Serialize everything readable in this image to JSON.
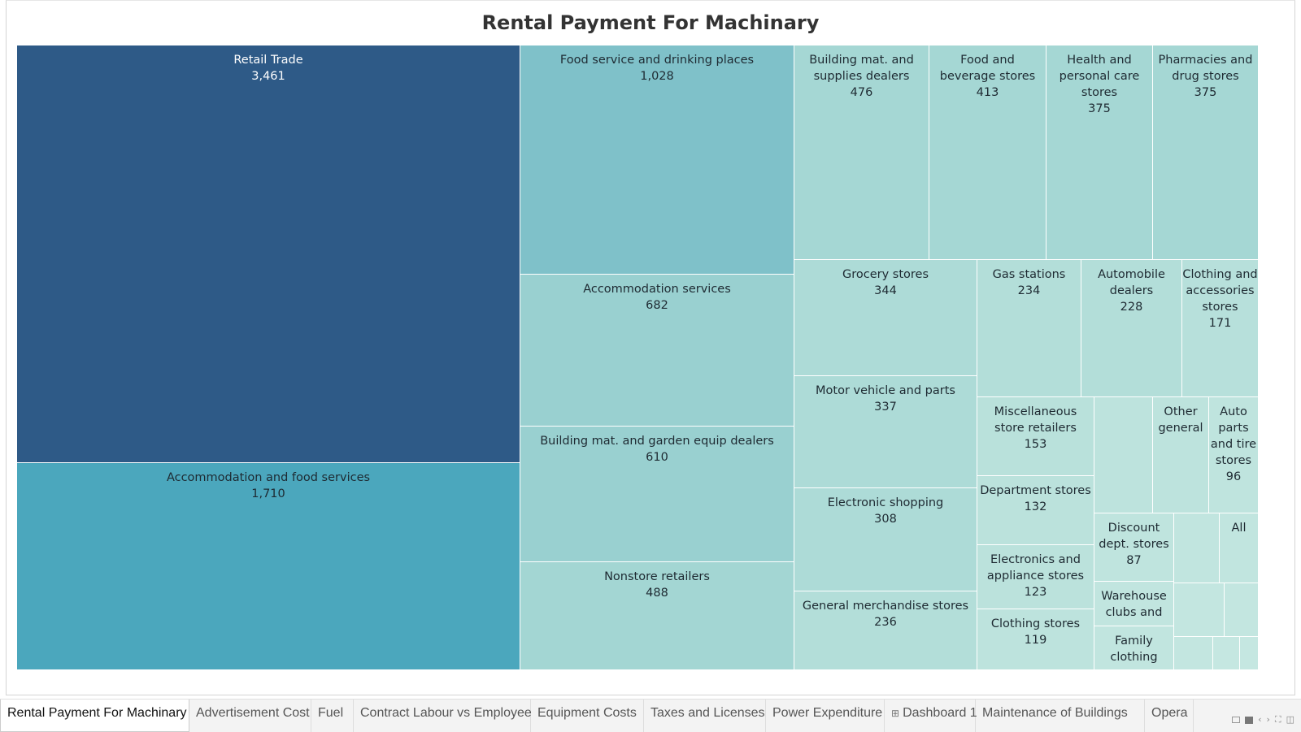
{
  "chart_data": {
    "type": "treemap",
    "title": "Rental Payment For Machinary",
    "cells": [
      {
        "name": "Retail Trade",
        "value": 3461,
        "color": "#2e5a87",
        "text_color": "#ffffff"
      },
      {
        "name": "Accommodation and food services",
        "value": 1710,
        "color": "#4ba7bd",
        "text_color": "#1e2a32"
      },
      {
        "name": "Food service and drinking places",
        "value": 1028,
        "color": "#7fc1c9",
        "text_color": "#1e2a32"
      },
      {
        "name": "Accommodation services",
        "value": 682,
        "color": "#99d0d0",
        "text_color": "#1e2a32"
      },
      {
        "name": "Building mat. and garden equip dealers",
        "value": 610,
        "color": "#99d0d0",
        "text_color": "#1e2a32"
      },
      {
        "name": "Nonstore retailers",
        "value": 488,
        "color": "#a3d6d3",
        "text_color": "#1e2a32"
      },
      {
        "name": "Building mat. and supplies dealers",
        "value": 476,
        "color": "#a5d7d4",
        "text_color": "#1e2a32"
      },
      {
        "name": "Food and beverage stores",
        "value": 413,
        "color": "#a5d7d4",
        "text_color": "#1e2a32"
      },
      {
        "name": "Health and personal care stores",
        "value": 375,
        "color": "#a5d7d4",
        "text_color": "#1e2a32"
      },
      {
        "name": "Pharmacies and drug stores",
        "value": 375,
        "color": "#a5d7d4",
        "text_color": "#1e2a32"
      },
      {
        "name": "Grocery stores",
        "value": 344,
        "color": "#addbd7",
        "text_color": "#1e2a32"
      },
      {
        "name": "Motor vehicle and parts",
        "value": 337,
        "color": "#addbd7",
        "text_color": "#1e2a32"
      },
      {
        "name": "Electronic shopping",
        "value": 308,
        "color": "#addbd7",
        "text_color": "#1e2a32"
      },
      {
        "name": "General merchandise stores",
        "value": 236,
        "color": "#b3ded9",
        "text_color": "#1e2a32"
      },
      {
        "name": "Gas stations",
        "value": 234,
        "color": "#b3ded9",
        "text_color": "#1e2a32"
      },
      {
        "name": "Automobile dealers",
        "value": 228,
        "color": "#b3ded9",
        "text_color": "#1e2a32"
      },
      {
        "name": "Clothing and accessories stores",
        "value": 171,
        "color": "#b7e0db",
        "text_color": "#1e2a32"
      },
      {
        "name": "Miscellaneous store retailers",
        "value": 153,
        "color": "#b9e1db",
        "text_color": "#1e2a32"
      },
      {
        "name": "Department stores",
        "value": 132,
        "color": "#bbe2dc",
        "text_color": "#1e2a32"
      },
      {
        "name": "Electronics and appliance stores",
        "value": 123,
        "color": "#bbe2dc",
        "text_color": "#1e2a32"
      },
      {
        "name": "Clothing stores",
        "value": 119,
        "color": "#bde3dd",
        "text_color": "#1e2a32"
      },
      {
        "name": "Other general",
        "value": null,
        "color": "#bde3dd",
        "text_color": "#1e2a32"
      },
      {
        "name": "Auto parts and tire stores",
        "value": 96,
        "color": "#bfe4de",
        "text_color": "#1e2a32"
      },
      {
        "name": "Discount dept. stores",
        "value": 87,
        "color": "#bfe4de",
        "text_color": "#1e2a32"
      },
      {
        "name": "All",
        "value": null,
        "color": "#c1e5df",
        "text_color": "#1e2a32"
      },
      {
        "name": "Warehouse clubs and",
        "value": null,
        "color": "#c1e5df",
        "text_color": "#1e2a32"
      },
      {
        "name": "Family clothing",
        "value": null,
        "color": "#c1e5df",
        "text_color": "#1e2a32"
      },
      {
        "name": "",
        "value": null,
        "color": "#bde3dd",
        "text_color": "#1e2a32"
      },
      {
        "name": "",
        "value": null,
        "color": "#c1e5df",
        "text_color": "#1e2a32"
      },
      {
        "name": "",
        "value": null,
        "color": "#c3e6e0",
        "text_color": "#1e2a32"
      },
      {
        "name": "",
        "value": null,
        "color": "#c3e6e0",
        "text_color": "#1e2a32"
      },
      {
        "name": "",
        "value": null,
        "color": "#c3e6e0",
        "text_color": "#1e2a32"
      },
      {
        "name": "",
        "value": null,
        "color": "#c5e7e1",
        "text_color": "#1e2a32"
      },
      {
        "name": "",
        "value": null,
        "color": "#c5e7e1",
        "text_color": "#1e2a32"
      },
      {
        "name": "",
        "value": null,
        "color": "#c5e7e1",
        "text_color": "#1e2a32"
      }
    ]
  },
  "tabs": [
    {
      "label": "Rental Payment For Machinary",
      "active": true,
      "dashboard": false
    },
    {
      "label": "Advertisement Cost",
      "active": false,
      "dashboard": false
    },
    {
      "label": "Fuel",
      "active": false,
      "dashboard": false
    },
    {
      "label": "Contract Labour vs Employee",
      "active": false,
      "dashboard": false
    },
    {
      "label": "Equipment Costs",
      "active": false,
      "dashboard": false
    },
    {
      "label": "Taxes and Licenses",
      "active": false,
      "dashboard": false
    },
    {
      "label": "Power Expenditure",
      "active": false,
      "dashboard": false
    },
    {
      "label": "Dashboard 1",
      "active": false,
      "dashboard": true
    },
    {
      "label": "Maintenance of Buildings",
      "active": false,
      "dashboard": false
    },
    {
      "label": "Opera",
      "active": false,
      "dashboard": false
    }
  ],
  "nav_icons": [
    "grid-icon",
    "box-icon",
    "prev-icon",
    "next-icon",
    "fullscreen-icon",
    "present-icon"
  ]
}
